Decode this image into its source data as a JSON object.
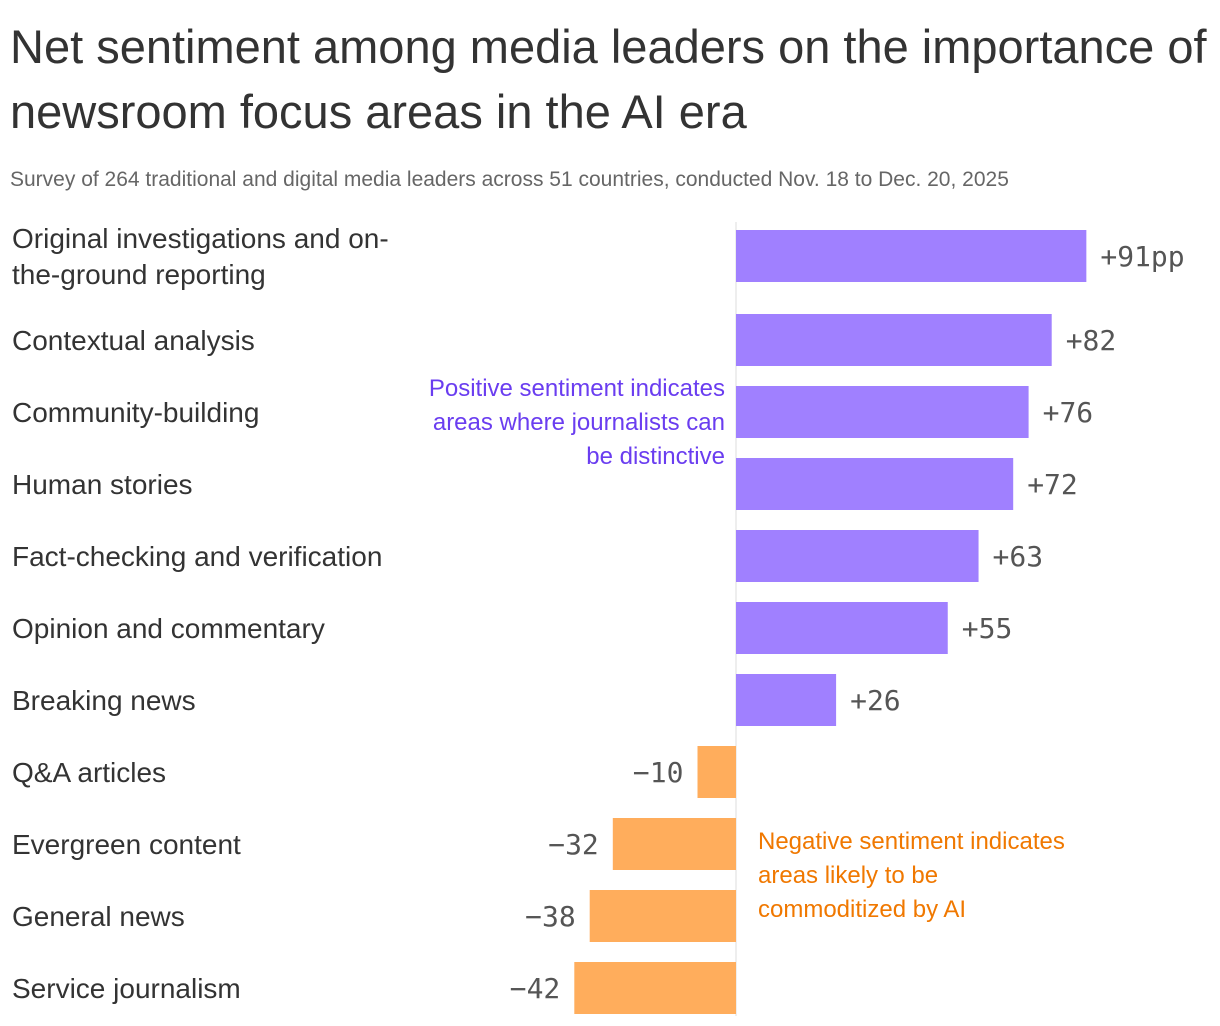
{
  "title": "Net sentiment among media leaders on the importance of newsroom focus areas in the AI era",
  "subtitle": "Survey of 264 traditional and digital media leaders across 51 countries, conducted Nov. 18 to Dec. 20, 2025",
  "annotations": {
    "positive": "Positive sentiment indicates areas where journalists can be distinctive",
    "negative": "Negative sentiment indicates areas likely to be commoditized by AI"
  },
  "colors": {
    "positive": "#a080ff",
    "negative": "#ffad5c",
    "positive_text": "#6a3df0",
    "negative_text": "#f07800"
  },
  "chart_data": {
    "type": "bar",
    "orientation": "horizontal",
    "title": "Net sentiment among media leaders on the importance of newsroom focus areas in the AI era",
    "subtitle": "Survey of 264 traditional and digital media leaders across 51 countries, conducted Nov. 18 to Dec. 20, 2025",
    "unit": "pp",
    "categories": [
      "Original investigations and on-the-ground reporting",
      "Contextual analysis",
      "Community-building",
      "Human stories",
      "Fact-checking and verification",
      "Opinion and commentary",
      "Breaking news",
      "Q&A articles",
      "Evergreen content",
      "General news",
      "Service journalism"
    ],
    "category_lines": [
      [
        "Original investigations and on-",
        "the-ground reporting"
      ],
      [
        "Contextual analysis"
      ],
      [
        "Community-building"
      ],
      [
        "Human stories"
      ],
      [
        "Fact-checking and verification"
      ],
      [
        "Opinion and commentary"
      ],
      [
        "Breaking news"
      ],
      [
        "Q&A articles"
      ],
      [
        "Evergreen content"
      ],
      [
        "General news"
      ],
      [
        "Service journalism"
      ]
    ],
    "values": [
      91,
      82,
      76,
      72,
      63,
      55,
      26,
      -10,
      -32,
      -38,
      -42
    ],
    "value_labels": [
      "+91pp",
      "+82",
      "+76",
      "+72",
      "+63",
      "+55",
      "+26",
      "−10",
      "−32",
      "−38",
      "−42"
    ],
    "xlim": [
      -42,
      91
    ],
    "grid": false,
    "legend": "none"
  }
}
